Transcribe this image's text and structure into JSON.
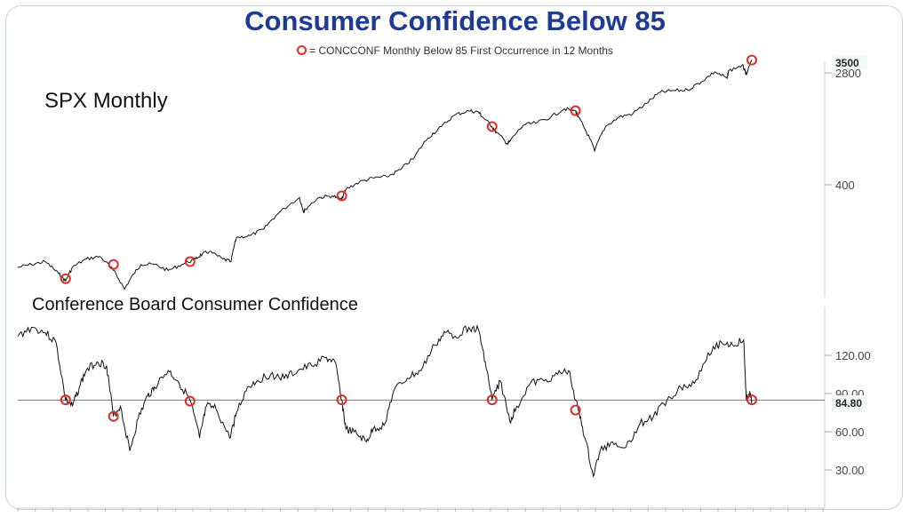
{
  "chart_data": [
    {
      "type": "line",
      "title": "Consumer Confidence Below 85",
      "legend": "= CONCCONF Monthly Below 85 First Occurrence in 12 Months",
      "panel_label": "SPX Monthly",
      "yscale": "log",
      "yticks": [
        "400",
        "2800"
      ],
      "last_value_label": "3500",
      "xlim": [
        1967,
        2020.7
      ],
      "x": [
        1967,
        1968,
        1969,
        1970,
        1970.5,
        1971,
        1972,
        1973,
        1974,
        1974.8,
        1975.5,
        1976,
        1977,
        1978,
        1979,
        1980,
        1980.5,
        1981,
        1982,
        1982.6,
        1983,
        1984,
        1985,
        1986,
        1987.6,
        1987.9,
        1988,
        1989,
        1990,
        1990.7,
        1991,
        1992,
        1993,
        1994,
        1995,
        1996,
        1997,
        1998,
        1999,
        2000,
        2000.7,
        2001,
        2001.7,
        2002,
        2002.8,
        2003,
        2004,
        2005,
        2006,
        2007,
        2007.8,
        2008,
        2008.5,
        2009.2,
        2010,
        2011,
        2012,
        2013,
        2014,
        2015,
        2016,
        2017,
        2018,
        2018.9,
        2019,
        2020,
        2020.2,
        2020.3,
        2020.7
      ],
      "values": [
        95,
        100,
        105,
        85,
        75,
        95,
        110,
        115,
        90,
        65,
        85,
        100,
        100,
        90,
        100,
        110,
        120,
        125,
        110,
        105,
        160,
        165,
        185,
        240,
        320,
        250,
        260,
        320,
        330,
        310,
        370,
        420,
        450,
        460,
        520,
        640,
        900,
        1100,
        1350,
        1450,
        1420,
        1300,
        1100,
        1000,
        820,
        850,
        1130,
        1180,
        1300,
        1500,
        1450,
        1300,
        1050,
        720,
        1100,
        1300,
        1380,
        1650,
        2000,
        2060,
        2080,
        2400,
        2850,
        2550,
        2900,
        3200,
        2900,
        2700,
        3500
      ],
      "markers_x": [
        1970.5,
        1974.0,
        1979.6,
        1990.7,
        2001.7,
        2007.8,
        2020.7
      ],
      "markers_y": [
        78,
        100,
        105,
        330,
        1100,
        1450,
        3500
      ],
      "marker_color": "#d9302a",
      "line_color": "#111111"
    },
    {
      "type": "line",
      "panel_label": "Conference Board Consumer Confidence",
      "yticks": [
        "30.00",
        "60.00",
        "90.00",
        "120.00"
      ],
      "ylim": [
        20,
        150
      ],
      "reference_line": 84.8,
      "last_value_label": "84.80",
      "xlim": [
        1967,
        2020.7
      ],
      "x": [
        1967,
        1968,
        1969,
        1969.8,
        1970.5,
        1971,
        1971.5,
        1972,
        1972.8,
        1973.5,
        1974,
        1974.5,
        1975.2,
        1975.8,
        1976.5,
        1977,
        1978,
        1978.7,
        1979.6,
        1980.3,
        1980.8,
        1981.5,
        1982.5,
        1983,
        1983.8,
        1984.5,
        1985.5,
        1986.5,
        1987.5,
        1988.5,
        1989.5,
        1990.2,
        1990.7,
        1991,
        1991.8,
        1992.5,
        1993,
        1993.8,
        1994.5,
        1995.5,
        1996.5,
        1997.5,
        1998.3,
        1999,
        2000,
        2000.7,
        2001.2,
        2001.7,
        2002.3,
        2003,
        2003.5,
        2004.5,
        2005.5,
        2006.5,
        2007.3,
        2008,
        2008.5,
        2009.1,
        2009.6,
        2010.5,
        2011.5,
        2012.5,
        2013.5,
        2014.5,
        2015.5,
        2016.5,
        2017.5,
        2018.5,
        2019.3,
        2020.1,
        2020.3,
        2020.5,
        2020.7
      ],
      "values": [
        135,
        142,
        138,
        130,
        85,
        80,
        95,
        108,
        115,
        112,
        72,
        80,
        45,
        70,
        88,
        95,
        108,
        100,
        85,
        55,
        80,
        78,
        55,
        75,
        95,
        100,
        105,
        102,
        108,
        112,
        118,
        115,
        85,
        62,
        58,
        52,
        62,
        65,
        92,
        102,
        108,
        128,
        138,
        135,
        142,
        140,
        115,
        85,
        100,
        68,
        80,
        98,
        100,
        105,
        108,
        77,
        55,
        25,
        45,
        52,
        48,
        66,
        72,
        85,
        95,
        98,
        122,
        130,
        128,
        132,
        85,
        90,
        85
      ],
      "markers_x": [
        1970.5,
        1974.0,
        1979.6,
        1990.7,
        2001.7,
        2007.8,
        2020.7
      ],
      "markers_y": [
        85,
        72,
        84,
        85,
        85,
        77,
        85
      ],
      "marker_color": "#d9302a",
      "line_color": "#111111",
      "reference_line_color": "#888888"
    }
  ]
}
